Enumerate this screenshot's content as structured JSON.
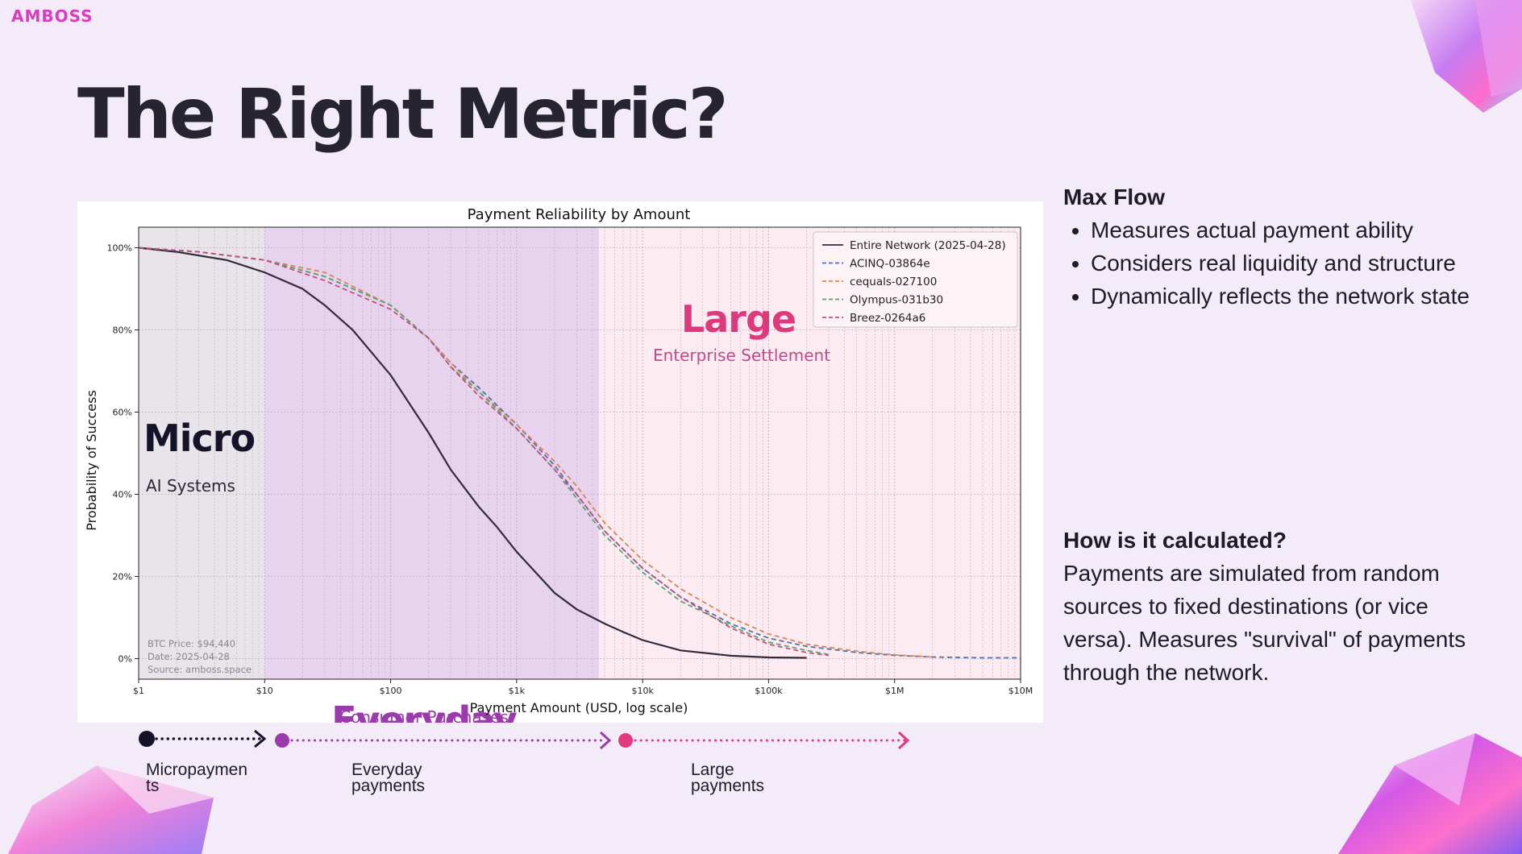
{
  "brand": {
    "logo": "AMBOSS"
  },
  "slide": {
    "title": "The Right Metric?"
  },
  "sidebar": {
    "section1_heading": "Max Flow",
    "bullets": [
      "Measures actual payment ability",
      "Considers real liquidity and structure",
      "Dynamically reflects the network state"
    ],
    "section2_heading": "How is it calculated?",
    "section2_body": "Payments are simulated from random sources to fixed destinations (or vice versa). Measures \"survival\" of payments through the network."
  },
  "timeline": {
    "labels": [
      "Micropaymen ts",
      "Everyday payments",
      "Large payments"
    ],
    "colors": [
      "#15132a",
      "#9b3aad",
      "#e5397d"
    ]
  },
  "chart_data": {
    "type": "line",
    "title": "Payment Reliability by Amount",
    "xlabel": "Payment Amount (USD, log scale)",
    "ylabel": "Probability of Success",
    "xscale": "log",
    "xlim": [
      1,
      10000000
    ],
    "ylim": [
      -0.05,
      1.05
    ],
    "x_ticks": [
      1,
      10,
      100,
      1000,
      10000,
      100000,
      1000000,
      10000000
    ],
    "x_tick_labels": [
      "$1",
      "$10",
      "$100",
      "$1k",
      "$10k",
      "$100k",
      "$1M",
      "$10M"
    ],
    "y_ticks": [
      0,
      0.2,
      0.4,
      0.6,
      0.8,
      1.0
    ],
    "y_tick_labels": [
      "0%",
      "20%",
      "40%",
      "60%",
      "80%",
      "100%"
    ],
    "grid": true,
    "legend_position": "top-right",
    "regions": [
      {
        "name": "Micro",
        "subtitle": "AI Systems",
        "from": 1,
        "to": 10,
        "fill": "#e8e4ea",
        "label_color": "#15132a",
        "sub_color": "#2a2838"
      },
      {
        "name": "Everyday",
        "subtitle": "Consumer Purchases",
        "from": 10,
        "to": 4500,
        "fill": "#e7d3ee",
        "label_color": "#9b3aad",
        "sub_color": "#9b3aad"
      },
      {
        "name": "Large",
        "subtitle": "Enterprise Settlement",
        "from": 4500,
        "to": 10000000,
        "fill": "#fcebf1",
        "label_color": "#dc3a7c",
        "sub_color": "#c04a8a"
      }
    ],
    "annotations": [
      "BTC Price: $94,440",
      "Date: 2025-04-28",
      "Source: amboss.space"
    ],
    "series": [
      {
        "name": "Entire Network (2025-04-28)",
        "color": "#2f2c3e",
        "dash": "solid",
        "x": [
          1,
          2,
          5,
          10,
          20,
          30,
          50,
          100,
          200,
          300,
          500,
          700,
          1000,
          2000,
          3000,
          5000,
          7000,
          10000,
          20000,
          50000,
          100000,
          200000
        ],
        "y": [
          1.0,
          0.99,
          0.97,
          0.94,
          0.9,
          0.86,
          0.8,
          0.69,
          0.55,
          0.46,
          0.37,
          0.32,
          0.26,
          0.16,
          0.12,
          0.085,
          0.065,
          0.045,
          0.02,
          0.007,
          0.003,
          0.002
        ]
      },
      {
        "name": "ACINQ-03864e",
        "color": "#4c72b0",
        "dash": "dashed",
        "x": [
          1,
          3,
          10,
          30,
          100,
          200,
          300,
          500,
          1000,
          2000,
          3000,
          5000,
          10000,
          20000,
          50000,
          100000,
          200000,
          500000,
          1000000,
          2000000,
          5000000,
          10000000
        ],
        "y": [
          1.0,
          0.99,
          0.97,
          0.93,
          0.86,
          0.78,
          0.72,
          0.66,
          0.57,
          0.47,
          0.4,
          0.31,
          0.22,
          0.15,
          0.085,
          0.05,
          0.03,
          0.015,
          0.008,
          0.004,
          0.002,
          0.002
        ]
      },
      {
        "name": "cequals-027100",
        "color": "#dd8452",
        "dash": "dashed",
        "x": [
          1,
          3,
          10,
          30,
          100,
          200,
          300,
          500,
          1000,
          2000,
          3000,
          5000,
          10000,
          20000,
          50000,
          100000,
          200000,
          500000,
          1000000,
          2000000
        ],
        "y": [
          1.0,
          0.99,
          0.97,
          0.94,
          0.86,
          0.78,
          0.72,
          0.65,
          0.57,
          0.48,
          0.42,
          0.33,
          0.24,
          0.17,
          0.1,
          0.06,
          0.035,
          0.018,
          0.009,
          0.004
        ]
      },
      {
        "name": "Olympus-031b30",
        "color": "#55a868",
        "dash": "dashed",
        "x": [
          1,
          3,
          10,
          30,
          100,
          200,
          300,
          500,
          1000,
          2000,
          3000,
          5000,
          10000,
          20000,
          50000,
          100000,
          200000,
          300000
        ],
        "y": [
          1.0,
          0.99,
          0.97,
          0.93,
          0.86,
          0.78,
          0.71,
          0.65,
          0.56,
          0.46,
          0.39,
          0.3,
          0.21,
          0.14,
          0.08,
          0.04,
          0.02,
          0.01
        ]
      },
      {
        "name": "Breez-0264a6",
        "color": "#c44e82",
        "dash": "dashed",
        "x": [
          1,
          3,
          10,
          30,
          100,
          200,
          300,
          500,
          1000,
          2000,
          3000,
          5000,
          10000,
          20000,
          50000,
          100000,
          200000,
          300000
        ],
        "y": [
          1.0,
          0.99,
          0.97,
          0.92,
          0.85,
          0.78,
          0.71,
          0.64,
          0.56,
          0.46,
          0.4,
          0.31,
          0.22,
          0.15,
          0.075,
          0.035,
          0.015,
          0.008
        ]
      }
    ]
  }
}
